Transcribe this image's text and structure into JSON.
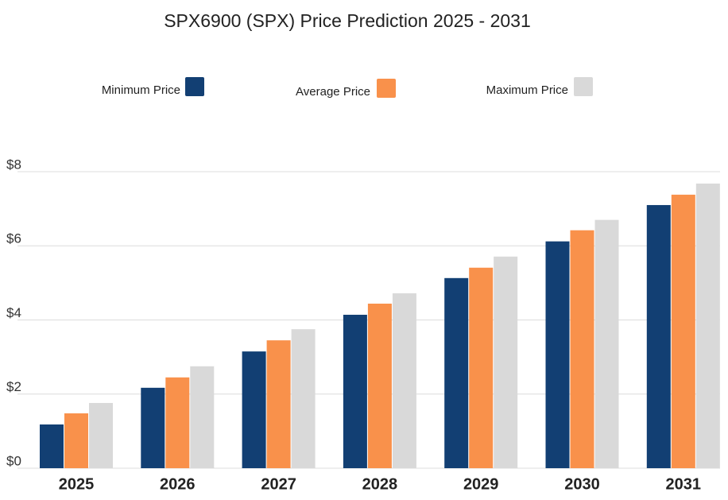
{
  "chart_data": {
    "type": "bar",
    "title": "SPX6900 (SPX) Price Prediction 2025 - 2031",
    "categories": [
      "2025",
      "2026",
      "2027",
      "2028",
      "2029",
      "2030",
      "2031"
    ],
    "series": [
      {
        "name": "Minimum Price",
        "color": "#123f73",
        "values": [
          1.18,
          2.17,
          3.15,
          4.14,
          5.13,
          6.12,
          7.1
        ]
      },
      {
        "name": "Average Price",
        "color": "#f9914b",
        "values": [
          1.48,
          2.45,
          3.45,
          4.44,
          5.41,
          6.42,
          7.38
        ]
      },
      {
        "name": "Maximum Price",
        "color": "#d9d9d9",
        "values": [
          1.76,
          2.75,
          3.75,
          4.72,
          5.71,
          6.7,
          7.68
        ]
      }
    ],
    "ylim": [
      0,
      8
    ],
    "yticks": [
      {
        "value": 0,
        "label": "$0"
      },
      {
        "value": 2,
        "label": "$2"
      },
      {
        "value": 4,
        "label": "$4"
      },
      {
        "value": 6,
        "label": "$6"
      },
      {
        "value": 8,
        "label": "$8"
      }
    ],
    "grid": true
  }
}
